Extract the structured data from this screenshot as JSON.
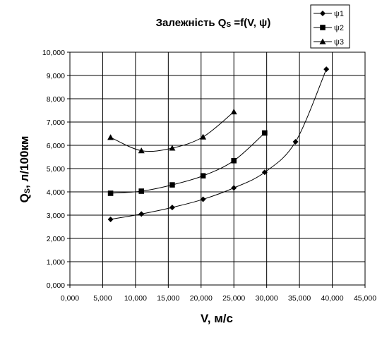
{
  "chart_data": {
    "type": "line",
    "title": "Залежність Q",
    "title_sub": "S",
    "title_rest": " =f(V, ψ)",
    "xlabel": "V, м/с",
    "ylabel": "Q",
    "ylabel_sub": "S",
    "ylabel_rest": ", л/100км",
    "xlim": [
      0,
      45
    ],
    "ylim": [
      0,
      10
    ],
    "x_ticks": [
      0,
      5,
      10,
      15,
      20,
      25,
      30,
      35,
      40,
      45
    ],
    "y_ticks": [
      0,
      1,
      2,
      3,
      4,
      5,
      6,
      7,
      8,
      9,
      10
    ],
    "x_tick_labels": [
      "0,000",
      "5,000",
      "10,000",
      "15,000",
      "20,000",
      "25,000",
      "30,000",
      "35,000",
      "40,000",
      "45,000"
    ],
    "y_tick_labels": [
      "0,000",
      "1,000",
      "2,000",
      "3,000",
      "4,000",
      "5,000",
      "6,000",
      "7,000",
      "8,000",
      "9,000",
      "10,000"
    ],
    "grid": true,
    "legend_position": "top-right",
    "series": [
      {
        "name": "ψ1",
        "marker": "diamond",
        "x": [
          6.2,
          10.9,
          15.6,
          20.3,
          25.0,
          29.7,
          34.4,
          39.1
        ],
        "y": [
          2.82,
          3.05,
          3.33,
          3.68,
          4.17,
          4.84,
          6.15,
          9.27
        ]
      },
      {
        "name": "ψ2",
        "marker": "square",
        "x": [
          6.2,
          10.9,
          15.6,
          20.3,
          25.0,
          29.7
        ],
        "y": [
          3.94,
          4.03,
          4.3,
          4.69,
          5.34,
          6.53
        ]
      },
      {
        "name": "ψ3",
        "marker": "triangle",
        "x": [
          6.2,
          10.9,
          15.6,
          20.3,
          25.0
        ],
        "y": [
          6.34,
          5.77,
          5.88,
          6.36,
          7.44
        ]
      }
    ]
  }
}
